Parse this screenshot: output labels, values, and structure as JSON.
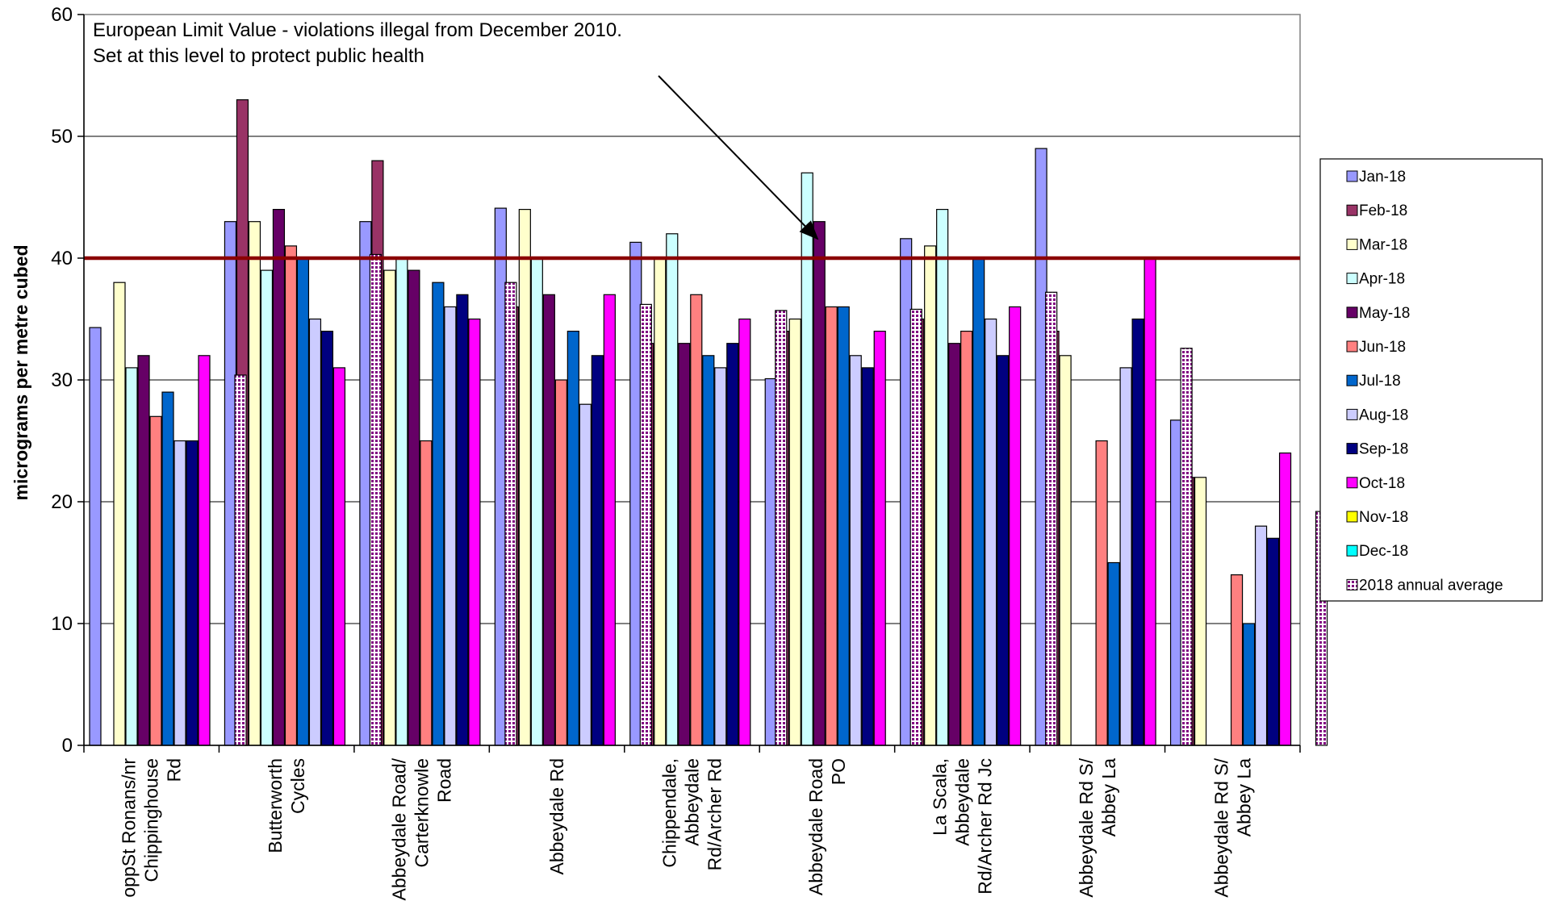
{
  "chart_data": {
    "type": "bar",
    "title": "",
    "xlabel": "",
    "ylabel": "micrograms per metre cubed",
    "ylim": [
      0,
      60
    ],
    "yticks": [
      0,
      10,
      20,
      30,
      40,
      50,
      60
    ],
    "grid": true,
    "legend_position": "right",
    "limit_line": {
      "value": 40,
      "color": "#8B0000"
    },
    "annotation": [
      "European Limit Value - violations illegal from December 2010.",
      "Set at this level to protect public health"
    ],
    "categories": [
      "oppSt Ronans/nr Chippinghouse Rd",
      "Butterworth Cycles",
      "Abbeydale Road/ Carterknowle Road",
      "Abbeydale Rd",
      "Chippendale, Abbeydale Rd/Archer Rd",
      "Abbeydale Road PO",
      "La Scala, Abbeydale Rd/Archer Rd Jc",
      "Abbeydale Rd S/ Abbey La",
      "Abbeydale Rd S/ Abbey La"
    ],
    "category_lines": [
      [
        "oppSt Ronans/nr",
        "Chippinghouse",
        "Rd"
      ],
      [
        "Butterworth",
        "Cycles"
      ],
      [
        "Abbeydale Road/",
        "Carterknowle",
        "Road"
      ],
      [
        "Abbeydale Rd"
      ],
      [
        "Chippendale,",
        "Abbeydale",
        "Rd/Archer Rd"
      ],
      [
        "Abbeydale Road",
        "PO"
      ],
      [
        "La Scala,",
        "Abbeydale",
        "Rd/Archer Rd Jc"
      ],
      [
        "Abbeydale Rd S/",
        "Abbey La"
      ],
      [
        "Abbeydale Rd S/",
        "Abbey La"
      ]
    ],
    "series": [
      {
        "name": "Jan-18",
        "color": "#9999FF",
        "values": [
          34.3,
          43,
          43,
          44.1,
          41.3,
          30.1,
          41.6,
          49,
          26.7
        ]
      },
      {
        "name": "Feb-18",
        "color": "#993366",
        "values": [
          null,
          53,
          48,
          36,
          33,
          34,
          35,
          34,
          22
        ]
      },
      {
        "name": "Mar-18",
        "color": "#FFFFCC",
        "values": [
          38,
          43,
          39,
          44,
          40,
          35,
          41,
          32,
          22
        ]
      },
      {
        "name": "Apr-18",
        "color": "#CCFFFF",
        "values": [
          31,
          39,
          40,
          40,
          42,
          47,
          44,
          null,
          null
        ]
      },
      {
        "name": "May-18",
        "color": "#660066",
        "values": [
          32,
          44,
          39,
          37,
          33,
          43,
          33,
          null,
          null
        ]
      },
      {
        "name": "Jun-18",
        "color": "#FF8080",
        "values": [
          27,
          41,
          25,
          30,
          37,
          36,
          34,
          25,
          14
        ]
      },
      {
        "name": "Jul-18",
        "color": "#0066CC",
        "values": [
          29,
          40,
          38,
          34,
          32,
          36,
          40,
          15,
          10
        ]
      },
      {
        "name": "Aug-18",
        "color": "#CCCCFF",
        "values": [
          25,
          35,
          36,
          28,
          31,
          32,
          35,
          31,
          18
        ]
      },
      {
        "name": "Sep-18",
        "color": "#000080",
        "values": [
          25,
          34,
          37,
          32,
          33,
          31,
          32,
          35,
          17
        ]
      },
      {
        "name": "Oct-18",
        "color": "#FF00FF",
        "values": [
          32,
          31,
          35,
          37,
          35,
          34,
          36,
          40,
          24
        ]
      },
      {
        "name": "Nov-18",
        "color": "#FFFF00",
        "values": [
          null,
          null,
          null,
          null,
          null,
          null,
          null,
          null,
          null
        ]
      },
      {
        "name": "Dec-18",
        "color": "#00FFFF",
        "values": [
          null,
          null,
          null,
          null,
          null,
          null,
          null,
          null,
          null
        ]
      },
      {
        "name": "2018 annual average",
        "color": "#800080",
        "pattern": "dotted",
        "values": [
          30.4,
          40.3,
          38,
          36.2,
          35.7,
          35.8,
          37.2,
          32.6,
          19.2
        ]
      }
    ]
  }
}
